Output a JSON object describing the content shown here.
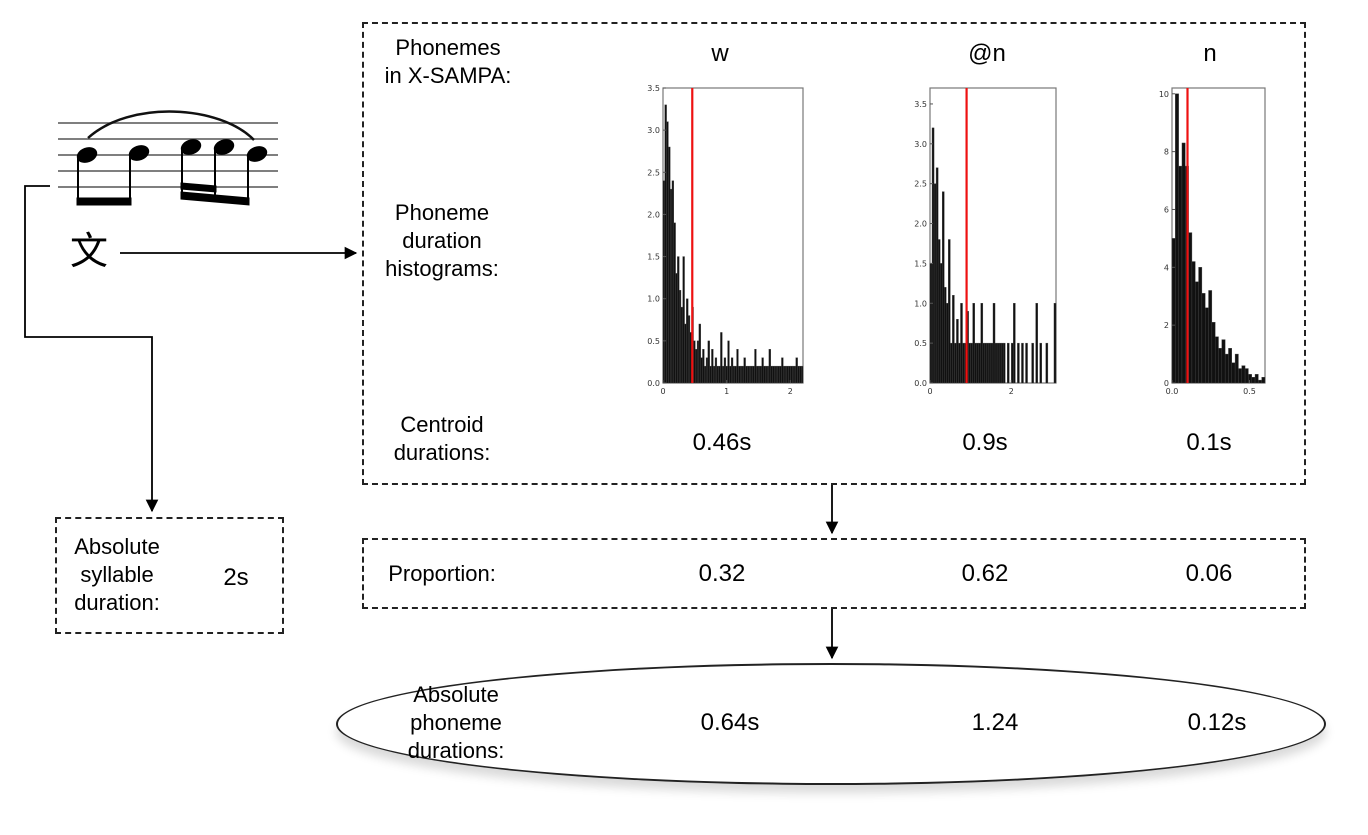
{
  "diagram": {
    "main_box": {
      "row_labels": {
        "phonemes": "Phonemes\nin X-SAMPA:",
        "histograms": "Phoneme\nduration\nhistograms:",
        "centroids": "Centroid\ndurations:"
      },
      "phonemes": [
        "w",
        "@n",
        "n"
      ],
      "centroid_durations": [
        "0.46s",
        "0.9s",
        "0.1s"
      ]
    },
    "syllable": {
      "character": "文",
      "label": "Absolute\nsyllable\nduration:",
      "value": "2s"
    },
    "proportion": {
      "label": "Proportion:",
      "values": [
        "0.32",
        "0.62",
        "0.06"
      ]
    },
    "absolute": {
      "label": "Absolute\nphoneme\ndurations:",
      "values": [
        "0.64s",
        "1.24",
        "0.12s"
      ]
    },
    "colors": {
      "centroid_line": "#ee1111",
      "bars": "#111111",
      "lines": "#000000"
    }
  },
  "chart_data": [
    {
      "type": "histogram",
      "title": "w",
      "xlim": [
        0,
        2.2
      ],
      "ylim": [
        0,
        3.5
      ],
      "xticks": [
        "0",
        "1",
        "2"
      ],
      "yticks": [
        "0.0",
        "0.5",
        "1.0",
        "1.5",
        "2.0",
        "2.5",
        "3.0",
        "3.5"
      ],
      "centroid": 0.46,
      "values": [
        2.4,
        3.3,
        3.1,
        2.8,
        2.3,
        2.4,
        1.9,
        1.3,
        1.5,
        1.1,
        0.9,
        1.5,
        0.7,
        1.0,
        0.8,
        0.6,
        0.9,
        0.5,
        0.4,
        0.5,
        0.7,
        0.3,
        0.4,
        0.2,
        0.3,
        0.5,
        0.2,
        0.4,
        0.2,
        0.3,
        0.2,
        0.2,
        0.6,
        0.2,
        0.3,
        0.2,
        0.5,
        0.2,
        0.3,
        0.2,
        0.2,
        0.4,
        0.2,
        0.2,
        0.2,
        0.3,
        0.2,
        0.2,
        0.2,
        0.2,
        0.2,
        0.4,
        0.2,
        0.2,
        0.2,
        0.3,
        0.2,
        0.2,
        0.2,
        0.4,
        0.2,
        0.2,
        0.2,
        0.2,
        0.2,
        0.2,
        0.3,
        0.2,
        0.2,
        0.2,
        0.2,
        0.2,
        0.2,
        0.2,
        0.3,
        0.2,
        0.2,
        0.2
      ]
    },
    {
      "type": "histogram",
      "title": "@n",
      "xlim": [
        0,
        3.1
      ],
      "ylim": [
        0,
        3.7
      ],
      "xticks": [
        "0",
        "2"
      ],
      "yticks": [
        "0.0",
        "0.5",
        "1.0",
        "1.5",
        "2.0",
        "2.5",
        "3.0",
        "3.5"
      ],
      "centroid": 0.9,
      "values": [
        1.5,
        3.2,
        2.5,
        2.7,
        1.8,
        1.5,
        2.4,
        1.2,
        1.0,
        1.8,
        0.5,
        1.1,
        0.5,
        0.8,
        0.5,
        1.0,
        0.5,
        0.5,
        0.9,
        0.5,
        0.5,
        1.0,
        0.5,
        0.5,
        0.5,
        1.0,
        0.5,
        0.5,
        0.5,
        0.5,
        0.5,
        1.0,
        0.5,
        0.5,
        0.5,
        0.5,
        0.5,
        0,
        0.5,
        0,
        0.5,
        1.0,
        0,
        0.5,
        0,
        0.5,
        0,
        0.5,
        0,
        0,
        0.5,
        0,
        1.0,
        0,
        0.5,
        0,
        0,
        0.5,
        0,
        0,
        0,
        1.0
      ]
    },
    {
      "type": "histogram",
      "title": "n",
      "xlim": [
        0,
        0.6
      ],
      "ylim": [
        0,
        10.2
      ],
      "xticks": [
        "0.0",
        "0.5"
      ],
      "yticks": [
        "0",
        "2",
        "4",
        "6",
        "8",
        "10"
      ],
      "centroid": 0.1,
      "values": [
        5.0,
        10.0,
        7.5,
        8.3,
        7.5,
        5.2,
        4.2,
        3.5,
        4.0,
        3.1,
        2.6,
        3.2,
        2.1,
        1.6,
        1.2,
        1.5,
        1.0,
        1.2,
        0.7,
        1.0,
        0.5,
        0.6,
        0.5,
        0.3,
        0.2,
        0.3,
        0.1,
        0.2
      ]
    }
  ]
}
